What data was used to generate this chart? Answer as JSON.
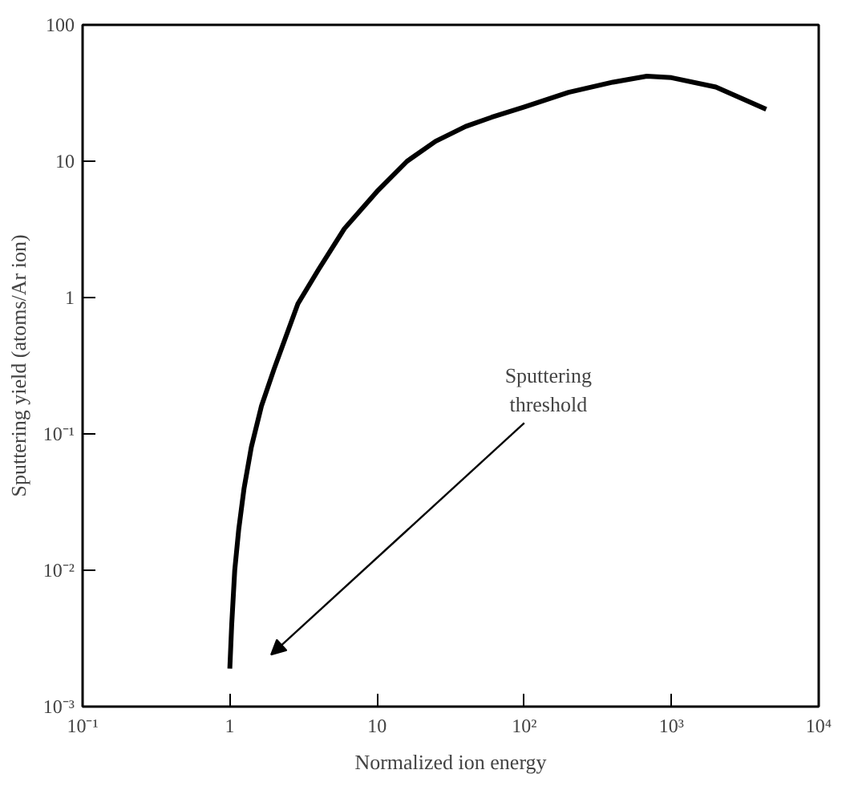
{
  "chart_data": {
    "type": "line",
    "xlabel": "Normalized ion energy",
    "ylabel": "Sputtering yield (atoms/Ar ion)",
    "log": "xy",
    "x": [
      1,
      1.03,
      1.08,
      1.15,
      1.25,
      1.4,
      1.64,
      2,
      2.9,
      4,
      6,
      10,
      16,
      25,
      40,
      60,
      100,
      200,
      400,
      680,
      1000,
      2000,
      4400
    ],
    "series": [
      {
        "color": "#000000",
        "values": [
          0.0019,
          0.004,
          0.01,
          0.02,
          0.04,
          0.08,
          0.16,
          0.3,
          0.9,
          1.6,
          3.2,
          6,
          10,
          14,
          18,
          21,
          25,
          32,
          38,
          42,
          41,
          35,
          24
        ]
      }
    ],
    "xlim": [
      0.1,
      10000
    ],
    "ylim": [
      0.001,
      100
    ],
    "xticks": [
      {
        "value": 0.1,
        "label": "10⁻¹"
      },
      1,
      10,
      {
        "value": 100,
        "label": "10²"
      },
      {
        "value": 1000,
        "label": "10³"
      },
      {
        "value": 10000,
        "label": "10⁴"
      }
    ],
    "yticks": [
      {
        "value": 0.001,
        "label": "10⁻³"
      },
      {
        "value": 0.01,
        "label": "10⁻²"
      },
      {
        "value": 0.1,
        "label": "10⁻¹"
      },
      1,
      10,
      100
    ],
    "grid": false,
    "marker": "none",
    "line_style": "solid",
    "annotations": [
      "Sputtering\nthreshold"
    ]
  }
}
